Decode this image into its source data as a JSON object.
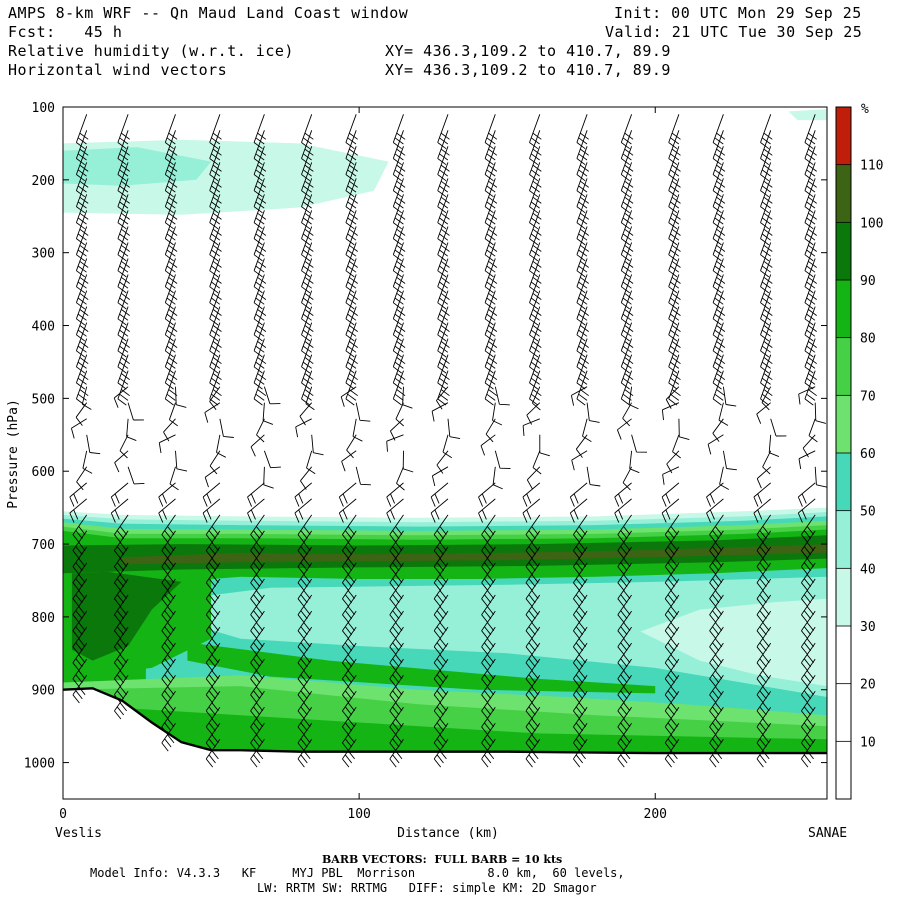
{
  "header": {
    "line1_left": "AMPS 8-km WRF -- Qn Maud Land Coast window",
    "line1_right": "Init: 00 UTC Mon 29 Sep 25",
    "line2_left": "Fcst:   45 h",
    "line2_right": "Valid: 21 UTC Tue 30 Sep 25",
    "field1": "Relative humidity (w.r.t. ice)",
    "field1_xy": "XY= 436.3,109.2 to 410.7, 89.9",
    "field2": "Horizontal wind vectors",
    "field2_xy": "XY= 436.3,109.2 to 410.7, 89.9"
  },
  "footer": {
    "barb_note": "BARB VECTORS:  FULL BARB = 10 kts",
    "model_info": "Model Info: V4.3.3   KF     MYJ PBL  Morrison          8.0 km,  60 levels,",
    "model_info2": "LW: RRTM SW: RRTMG   DIFF: simple KM: 2D Smagor"
  },
  "colors": {
    "c30_40": "#c8f8e8",
    "c40_50": "#96f0d8",
    "c50_60": "#46d8b8",
    "c60_70": "#6ee26e",
    "c70_80": "#46d046",
    "c80_90": "#14b414",
    "c90_100": "#0a780a",
    "c100_110": "#3c6414",
    "c110_120": "#be1e0a",
    "terrain": "#000000",
    "barb": "#000000"
  },
  "chart_data": {
    "type": "cross-section",
    "title": "Relative humidity (w.r.t. ice) and horizontal wind vectors",
    "xlabel": "Distance (km)",
    "ylabel": "Pressure (hPa)",
    "xlim": [
      0,
      258
    ],
    "ylim": [
      1050,
      100
    ],
    "x_ticks": [
      0,
      100,
      200
    ],
    "y_ticks": [
      100,
      200,
      300,
      400,
      500,
      600,
      700,
      800,
      900,
      1000
    ],
    "x_endpoints": {
      "left": "Veslis",
      "right": "SANAE"
    },
    "colorbar": {
      "unit": "%",
      "levels": [
        10,
        20,
        30,
        40,
        50,
        60,
        70,
        80,
        90,
        100,
        110
      ],
      "bands": [
        {
          "from": 30,
          "to": 40,
          "color_key": "c30_40"
        },
        {
          "from": 40,
          "to": 50,
          "color_key": "c40_50"
        },
        {
          "from": 50,
          "to": 60,
          "color_key": "c50_60"
        },
        {
          "from": 60,
          "to": 70,
          "color_key": "c60_70"
        },
        {
          "from": 70,
          "to": 80,
          "color_key": "c70_80"
        },
        {
          "from": 80,
          "to": 90,
          "color_key": "c80_90"
        },
        {
          "from": 90,
          "to": 100,
          "color_key": "c90_100"
        },
        {
          "from": 100,
          "to": 110,
          "color_key": "c100_110"
        },
        {
          "from": 110,
          "to": 120,
          "color_key": "c110_120"
        }
      ]
    },
    "terrain_surface": {
      "distance_km": [
        0,
        10,
        20,
        30,
        40,
        50,
        60,
        80,
        100,
        150,
        200,
        258
      ],
      "pressure_hpa": [
        900,
        898,
        915,
        945,
        972,
        983,
        983,
        985,
        985,
        985,
        987,
        987
      ]
    },
    "moist_layer": {
      "top_hpa_at_left": 655,
      "top_hpa_at_right": 650,
      "max_rh_core_hpa": [
        700,
        730
      ],
      "max_rh_percent": 110
    },
    "upper_moist_patch": {
      "distance_km": [
        0,
        110
      ],
      "pressure_hpa": [
        150,
        245
      ],
      "rh_percent": [
        30,
        50
      ]
    },
    "wind_barb_columns_km": [
      8,
      22,
      38,
      53,
      68,
      84,
      99,
      115,
      130,
      146,
      161,
      177,
      192,
      208,
      223,
      239,
      254
    ]
  }
}
